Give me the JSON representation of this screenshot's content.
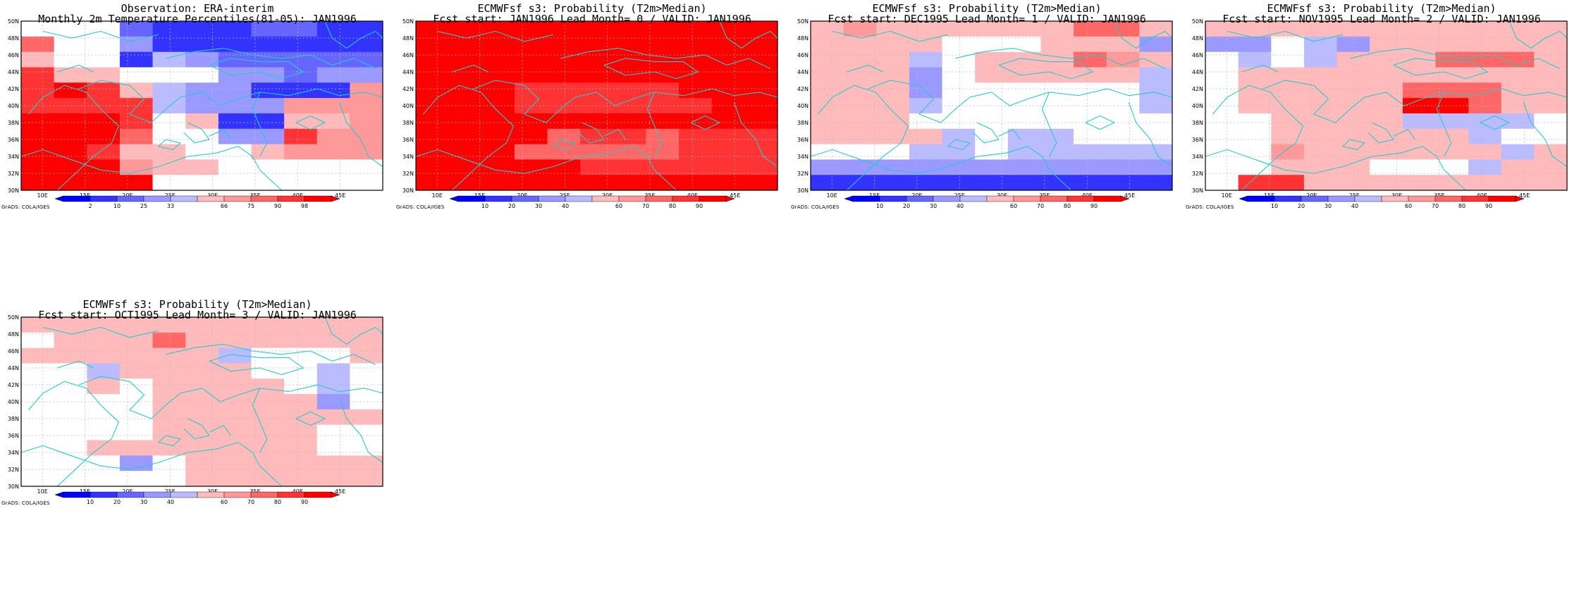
{
  "map": {
    "lon_labels": [
      "10E",
      "15E",
      "20E",
      "25E",
      "30E",
      "35E",
      "40E",
      "45E"
    ],
    "lat_labels": [
      "30N",
      "32N",
      "34N",
      "36N",
      "38N",
      "40N",
      "42N",
      "44N",
      "46N",
      "48N",
      "50N"
    ],
    "credit": "GrADS: COLA/IGES",
    "colors": {
      "coast": "#22cccc",
      "grid": "#bbbbbb",
      "bins_obs": [
        "#0000ff",
        "#3333ff",
        "#6666ff",
        "#9999ff",
        "#bbbbff",
        "#ffffff",
        "#ffbbbb",
        "#ff9999",
        "#ff6666",
        "#ff3333",
        "#ff0000"
      ],
      "bins_prob": [
        "#0000ff",
        "#3333ff",
        "#6666ff",
        "#9999ff",
        "#bbbbff",
        "#ffffff",
        "#ffbbbb",
        "#ff9999",
        "#ff6666",
        "#ff3333",
        "#ff0000"
      ]
    }
  },
  "panels": [
    {
      "title1": "Observation: ERA-interim",
      "title2": "Monthly 2m Temperature Percentiles(81-05): JAN1996",
      "cbar_labels": [
        "2",
        "10",
        "25",
        "33",
        "66",
        "75",
        "90",
        "98"
      ],
      "grid": [
        "44410001100",
        "74420000000",
        "54403211111",
        "85544422122",
        "89853220006",
        "88883222666",
        "99984500556",
        "99974422866",
        "99855445666",
        "99965544444",
        "99994444444"
      ]
    },
    {
      "title1": "ECMWFsf s3: Probability (T2m>Median)",
      "title2": "Fcst start: JAN1996  Lead Month= 0 / VALID: JAN1996",
      "cbar_labels": [
        "10",
        "20",
        "30",
        "40",
        "60",
        "70",
        "80",
        "90"
      ],
      "grid": [
        "99999999999",
        "99999999999",
        "99999999999",
        "99999999999",
        "99988888999",
        "99988888899",
        "99999999999",
        "99997887888",
        "99977777888",
        "99999888888",
        "99999999999"
      ]
    },
    {
      "title1": "ECMWFsf s3: Probability (T2m>Median)",
      "title2": "Fcst start: DEC1995  Lead Month= 1 / VALID: JAN1996",
      "cbar_labels": [
        "10",
        "20",
        "30",
        "40",
        "60",
        "70",
        "80",
        "90"
      ],
      "grid": [
        "56555555775",
        "55554445552",
        "55534555765",
        "55524555553",
        "55524444443",
        "55534444443",
        "55544444444",
        "55553433444",
        "44433433333",
        "22222222222",
        "00000000000"
      ]
    },
    {
      "title1": "ECMWFsf s3: Probability (T2m>Median)",
      "title2": "Fcst start: NOV1995  Lead Month= 2 / VALID: JAN1996",
      "cbar_labels": [
        "10",
        "20",
        "30",
        "40",
        "60",
        "70",
        "80",
        "90"
      ],
      "grid": [
        "55555555555",
        "22432555555",
        "43435557775",
        "45555555555",
        "45555577755",
        "45555599755",
        "44555533334",
        "44555555344",
        "44655555535",
        "44555444355",
        "48855555555"
      ]
    },
    {
      "title1": "ECMWFsf s3: Probability (T2m>Median)",
      "title2": "Fcst start: OCT1995  Lead Month= 3 / VALID: JAN1996",
      "cbar_labels": [
        "10",
        "20",
        "30",
        "40",
        "60",
        "70",
        "80",
        "90"
      ],
      "grid": [
        "55555555555",
        "45557555555",
        "55555534445",
        "44355554434",
        "44545555434",
        "44445555524",
        "44445555555",
        "44445555544",
        "44555555544",
        "44424555555",
        "44444555555"
      ]
    }
  ]
}
